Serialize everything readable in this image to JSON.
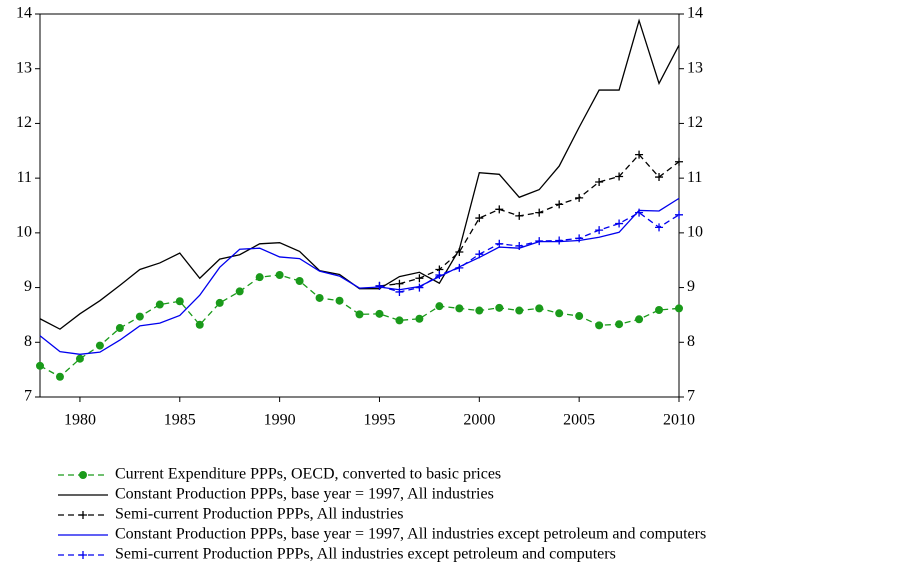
{
  "chart_data": {
    "type": "line",
    "x": [
      1978,
      1979,
      1980,
      1981,
      1982,
      1983,
      1984,
      1985,
      1986,
      1987,
      1988,
      1989,
      1990,
      1991,
      1992,
      1993,
      1994,
      1995,
      1996,
      1997,
      1998,
      1999,
      2000,
      2001,
      2002,
      2003,
      2004,
      2005,
      2006,
      2007,
      2008,
      2009,
      2010
    ],
    "xlim": [
      1978,
      2010
    ],
    "xticks": [
      1980,
      1985,
      1990,
      1995,
      2000,
      2005,
      2010
    ],
    "ylim": [
      7,
      14
    ],
    "yticks": [
      7,
      8,
      9,
      10,
      11,
      12,
      13,
      14
    ],
    "y2lim": [
      7,
      14
    ],
    "y2ticks": [
      7,
      8,
      9,
      10,
      11,
      12,
      13,
      14
    ],
    "series": [
      {
        "name": "Current Expenditure PPPs, OECD, converted to basic prices",
        "color": "#1a9a1a",
        "dashed": true,
        "marker": "circle",
        "values": [
          7.57,
          7.37,
          7.7,
          7.94,
          8.26,
          8.47,
          8.69,
          8.75,
          8.32,
          8.72,
          8.93,
          9.19,
          9.23,
          9.12,
          8.81,
          8.76,
          8.51,
          8.52,
          8.4,
          8.43,
          8.66,
          8.62,
          8.58,
          8.63,
          8.58,
          8.62,
          8.53,
          8.48,
          8.31,
          8.33,
          8.42,
          8.59,
          8.62
        ]
      },
      {
        "name": "Constant Production PPPs, base year = 1997,  All industries",
        "color": "#000000",
        "dashed": false,
        "marker": "none",
        "values": [
          8.43,
          8.24,
          8.52,
          8.76,
          9.04,
          9.33,
          9.45,
          9.63,
          9.17,
          9.52,
          9.6,
          9.8,
          9.82,
          9.66,
          9.31,
          9.24,
          8.98,
          8.98,
          9.2,
          9.28,
          9.08,
          9.7,
          11.1,
          11.07,
          10.65,
          10.79,
          11.22,
          11.93,
          12.61,
          12.61,
          13.88,
          12.73,
          13.43
        ]
      },
      {
        "name": "Semi-current Production PPPs,  All industries",
        "color": "#000000",
        "dashed": true,
        "marker": "plus",
        "values": [
          null,
          null,
          null,
          null,
          null,
          null,
          null,
          null,
          null,
          null,
          null,
          null,
          null,
          null,
          null,
          null,
          null,
          9.03,
          9.07,
          9.17,
          9.33,
          9.65,
          10.27,
          10.43,
          10.31,
          10.37,
          10.52,
          10.64,
          10.93,
          11.03,
          11.43,
          11.02,
          11.3
        ]
      },
      {
        "name": "Constant Production PPPs, base year = 1997,  All industries except petroleum and computers",
        "color": "#0000ee",
        "dashed": false,
        "marker": "none",
        "values": [
          8.12,
          7.83,
          7.78,
          7.82,
          8.04,
          8.3,
          8.35,
          8.49,
          8.86,
          9.37,
          9.7,
          9.72,
          9.56,
          9.53,
          9.3,
          9.21,
          8.99,
          9.01,
          8.96,
          9.02,
          9.2,
          9.38,
          9.55,
          9.74,
          9.72,
          9.84,
          9.84,
          9.86,
          9.92,
          10.01,
          10.41,
          10.4,
          10.63
        ]
      },
      {
        "name": "Semi-current Production PPPs,  All industries except petroleum and computers",
        "color": "#0000ee",
        "dashed": true,
        "marker": "plus",
        "values": [
          null,
          null,
          null,
          null,
          null,
          null,
          null,
          null,
          null,
          null,
          null,
          null,
          null,
          null,
          null,
          null,
          null,
          9.03,
          8.92,
          9.0,
          9.23,
          9.36,
          9.61,
          9.8,
          9.76,
          9.85,
          9.86,
          9.9,
          10.05,
          10.17,
          10.37,
          10.1,
          10.33
        ]
      }
    ]
  }
}
